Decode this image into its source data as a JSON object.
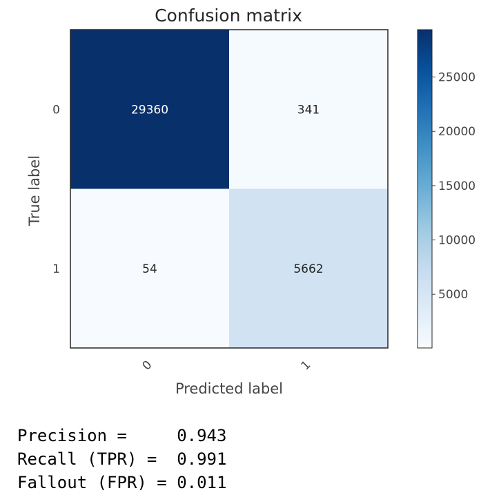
{
  "chart_data": {
    "type": "heatmap",
    "title": "Confusion matrix",
    "xlabel": "Predicted label",
    "ylabel": "True label",
    "x_categories": [
      "0",
      "1"
    ],
    "y_categories": [
      "0",
      "1"
    ],
    "values": [
      [
        29360,
        341
      ],
      [
        54,
        5662
      ]
    ],
    "colormap": "Blues",
    "colorbar": {
      "min": 54,
      "max": 29360,
      "ticks": [
        5000,
        10000,
        15000,
        20000,
        25000
      ]
    },
    "grid": false
  },
  "metrics": [
    {
      "label": "Precision =     ",
      "value": "0.943"
    },
    {
      "label": "Recall (TPR) =  ",
      "value": "0.991"
    },
    {
      "label": "Fallout (FPR) = ",
      "value": "0.011"
    }
  ]
}
